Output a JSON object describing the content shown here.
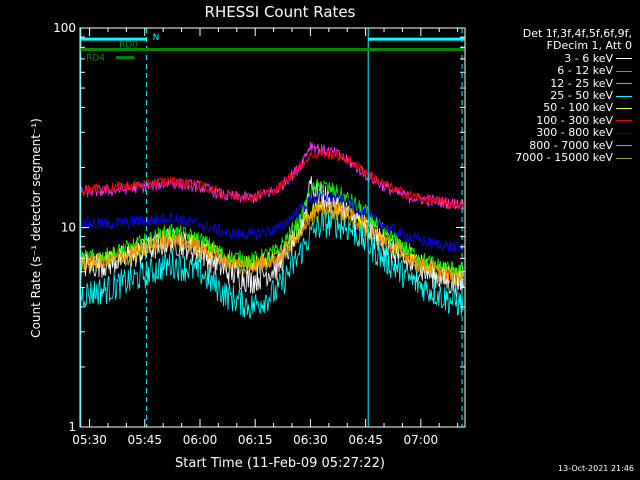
{
  "chart_data": {
    "type": "line",
    "title": "RHESSI Count Rates",
    "xlabel": "Start Time (11-Feb-09 05:27:22)",
    "ylabel": "Count Rate (s⁻¹ detector segment⁻¹)",
    "yscale": "log",
    "ylim": [
      1,
      100
    ],
    "xlim_minutes": [
      327.4,
      432.0
    ],
    "x_ticks": [
      {
        "label": "05:30",
        "min": 330
      },
      {
        "label": "05:45",
        "min": 345
      },
      {
        "label": "06:00",
        "min": 360
      },
      {
        "label": "06:15",
        "min": 375
      },
      {
        "label": "06:30",
        "min": 390
      },
      {
        "label": "06:45",
        "min": 405
      },
      {
        "label": "07:00",
        "min": 420
      }
    ],
    "y_ticks": [
      {
        "label": "1",
        "v": 1
      },
      {
        "label": "10",
        "v": 10
      },
      {
        "label": "100",
        "v": 100
      }
    ],
    "x_knots_min": [
      327.4,
      335,
      345,
      352,
      360,
      367,
      374,
      381,
      387,
      390,
      393,
      397,
      401,
      405,
      409,
      413,
      417,
      421,
      425,
      428,
      431.8
    ],
    "series": [
      {
        "name": "3 - 6 keV",
        "color": "#ffffff",
        "values": [
          6.4,
          6.6,
          7.6,
          8.6,
          7.6,
          6.1,
          5.4,
          6.3,
          9.5,
          16.0,
          14.5,
          13.0,
          11.5,
          10.0,
          8.5,
          7.3,
          6.5,
          6.0,
          5.6,
          5.3,
          5.1
        ]
      },
      {
        "name": "6 - 12 keV",
        "color": "#ff33ff",
        "values": [
          15.0,
          15.3,
          16.0,
          16.8,
          16.0,
          14.4,
          14.0,
          15.5,
          20.0,
          26.0,
          24.5,
          23.5,
          21.0,
          18.5,
          16.5,
          15.0,
          14.2,
          13.8,
          13.5,
          13.2,
          13.0
        ]
      },
      {
        "name": "12 - 25 keV",
        "color": "#00ff00",
        "values": [
          7.0,
          7.2,
          8.5,
          9.6,
          8.7,
          7.2,
          6.8,
          7.6,
          10.8,
          15.0,
          16.2,
          15.0,
          13.5,
          11.8,
          9.8,
          8.6,
          7.6,
          6.8,
          6.4,
          6.2,
          6.1
        ]
      },
      {
        "name": "25 - 50 keV",
        "color": "#00ffff",
        "values": [
          4.6,
          4.9,
          5.8,
          6.6,
          6.0,
          4.6,
          4.0,
          4.8,
          7.3,
          9.2,
          10.4,
          10.5,
          9.8,
          8.5,
          7.2,
          6.3,
          5.5,
          5.0,
          4.6,
          4.3,
          4.1
        ]
      },
      {
        "name": "50 - 100 keV",
        "color": "#ffff00",
        "values": [
          6.8,
          7.0,
          8.0,
          9.2,
          8.3,
          7.0,
          6.6,
          7.2,
          9.8,
          12.0,
          13.0,
          13.0,
          12.0,
          10.6,
          9.2,
          8.2,
          7.3,
          6.6,
          6.2,
          6.0,
          5.9
        ]
      },
      {
        "name": "100 - 300 keV",
        "color": "#ff0000",
        "values": [
          15.5,
          15.8,
          16.5,
          17.2,
          16.2,
          14.6,
          14.2,
          15.6,
          20.0,
          23.0,
          23.5,
          23.0,
          21.5,
          19.0,
          17.0,
          15.5,
          14.5,
          13.9,
          13.5,
          13.2,
          13.0
        ]
      },
      {
        "name": "300 - 800 keV",
        "color": "#0000ff",
        "values": [
          10.6,
          10.4,
          10.8,
          11.2,
          10.4,
          9.4,
          9.2,
          9.8,
          12.2,
          13.7,
          14.3,
          14.0,
          13.0,
          11.8,
          10.5,
          9.6,
          9.0,
          8.5,
          8.2,
          8.0,
          7.9
        ]
      },
      {
        "name": "800 - 7000 keV",
        "color": "#ff8800",
        "values": [
          6.6,
          6.8,
          7.8,
          8.8,
          8.0,
          6.8,
          6.4,
          7.0,
          9.5,
          11.5,
          12.5,
          12.3,
          11.5,
          10.2,
          8.9,
          7.9,
          7.0,
          6.4,
          6.0,
          5.8,
          5.7
        ]
      },
      {
        "name": "7000 - 15000 keV",
        "color": "#99aa00",
        "values": [
          6.3,
          6.5,
          7.5,
          8.4,
          7.6,
          6.5,
          6.2,
          6.8,
          9.2,
          11.0,
          12.0,
          11.8,
          11.0,
          9.8,
          8.6,
          7.6,
          6.8,
          6.2,
          5.8,
          5.6,
          5.5
        ]
      }
    ],
    "spike": {
      "series": "3 - 6 keV",
      "min": 390.0,
      "peak": 19.0
    },
    "vlines": [
      {
        "min": 327.6,
        "style": "solid",
        "color": "#00ffff"
      },
      {
        "min": 345.5,
        "style": "dashed",
        "color": "#00ffff"
      },
      {
        "min": 405.7,
        "style": "solid",
        "color": "#00ffff"
      },
      {
        "min": 431.2,
        "style": "dashed",
        "color": "#00ffff"
      }
    ],
    "bars": [
      {
        "label": "N",
        "color": "#00ffff",
        "segments": [
          [
            327.4,
            345.5
          ],
          [
            405.7,
            431.8
          ]
        ],
        "y": 88
      },
      {
        "label": "RD0",
        "color": "#008800",
        "segments": [
          [
            327.4,
            431.8
          ]
        ],
        "y": 78
      },
      {
        "label": "RD4",
        "color": "#008800",
        "segments": [
          [
            337.2,
            342.2
          ]
        ],
        "y": 71
      }
    ]
  },
  "legend": {
    "header_line1": "Det 1f,3f,4f,5f,6f,9f,",
    "header_line2": "FDecim 1, Att 0"
  },
  "timestamp": "13-Oct-2021 21:46"
}
